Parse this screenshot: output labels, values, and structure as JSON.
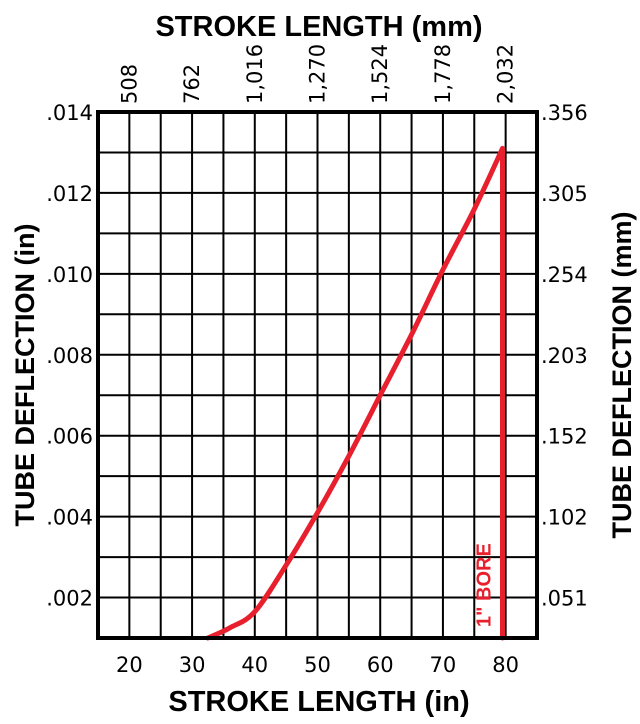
{
  "chart_data": {
    "type": "line",
    "xlabel": "STROKE LENGTH (in)",
    "x2label": "STROKE LENGTH (mm)",
    "ylabel": "TUBE DEFLECTION (in)",
    "y2label": "TUBE DEFLECTION (mm)",
    "xlim": [
      15,
      85
    ],
    "ylim": [
      0.001,
      0.014
    ],
    "x_ticks": [
      20,
      30,
      40,
      50,
      60,
      70,
      80
    ],
    "x_tick_labels": [
      "20",
      "30",
      "40",
      "50",
      "60",
      "70",
      "80"
    ],
    "x2_ticks": [
      20,
      30,
      40,
      50,
      60,
      70,
      80
    ],
    "x2_tick_labels": [
      "508",
      "762",
      "1,016",
      "1,270",
      "1,524",
      "1,778",
      "2,032"
    ],
    "y_ticks": [
      0.002,
      0.004,
      0.006,
      0.008,
      0.01,
      0.012,
      0.014
    ],
    "y_tick_labels": [
      ".002",
      ".004",
      ".006",
      ".008",
      ".010",
      ".012",
      ".014"
    ],
    "y2_ticks": [
      0.002,
      0.004,
      0.006,
      0.008,
      0.01,
      0.012,
      0.014
    ],
    "y2_tick_labels": [
      ".051",
      ".102",
      ".152",
      ".203",
      ".254",
      ".305",
      ".356"
    ],
    "grid": true,
    "series": [
      {
        "name": "1\" BORE",
        "color": "#e8202e",
        "x": [
          32.5,
          36,
          40,
          45,
          50,
          55,
          60,
          65,
          70,
          75,
          79.5
        ],
        "y": [
          0.001,
          0.00125,
          0.00165,
          0.0028,
          0.0041,
          0.0055,
          0.007,
          0.0085,
          0.0101,
          0.0116,
          0.0131
        ],
        "drop_to_axis_at_end": true
      }
    ]
  }
}
